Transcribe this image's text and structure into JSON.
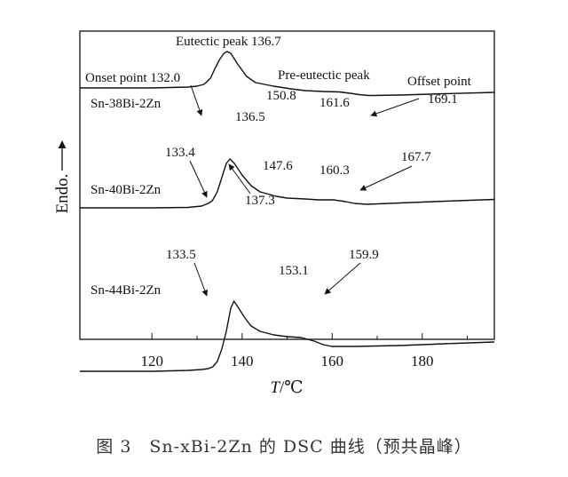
{
  "chart_data": {
    "type": "line",
    "xlabel_var": "T",
    "xlabel_unit": "/℃",
    "ylabel": "Endo.",
    "xlim": [
      104,
      196
    ],
    "xticks": [
      120,
      140,
      160,
      180
    ],
    "grid": false,
    "series": [
      {
        "name": "Sn-38Bi-2Zn",
        "points": [
          [
            104,
            41
          ],
          [
            120,
            41
          ],
          [
            128,
            42
          ],
          [
            130,
            43
          ],
          [
            131.5,
            45
          ],
          [
            132,
            47
          ],
          [
            133,
            52
          ],
          [
            134,
            63
          ],
          [
            135,
            73
          ],
          [
            136,
            80
          ],
          [
            136.7,
            82
          ],
          [
            137.5,
            80
          ],
          [
            139,
            68
          ],
          [
            141,
            54
          ],
          [
            143,
            47
          ],
          [
            147,
            43
          ],
          [
            150.8,
            40
          ],
          [
            154,
            38
          ],
          [
            158,
            37
          ],
          [
            161.6,
            36.5
          ],
          [
            164,
            35
          ],
          [
            166,
            33.5
          ],
          [
            168,
            32.5
          ],
          [
            169.1,
            32.5
          ],
          [
            175,
            33
          ],
          [
            185,
            34.5
          ],
          [
            196,
            36
          ]
        ]
      },
      {
        "name": "Sn-40Bi-2Zn",
        "points": [
          [
            104,
            -2
          ],
          [
            120,
            -2
          ],
          [
            128,
            -1.5
          ],
          [
            131,
            0
          ],
          [
            132.5,
            3
          ],
          [
            133.4,
            6
          ],
          [
            134.5,
            16
          ],
          [
            135.5,
            32
          ],
          [
            136.5,
            48
          ],
          [
            137.3,
            53
          ],
          [
            138.3,
            48
          ],
          [
            140,
            35
          ],
          [
            142,
            23
          ],
          [
            144,
            16
          ],
          [
            147.6,
            11
          ],
          [
            150,
            9
          ],
          [
            154,
            8
          ],
          [
            157,
            7
          ],
          [
            160.3,
            7
          ],
          [
            163,
            5
          ],
          [
            165,
            3
          ],
          [
            167.7,
            2
          ],
          [
            175,
            3.5
          ],
          [
            185,
            5.5
          ],
          [
            196,
            7.5
          ]
        ]
      },
      {
        "name": "Sn-44Bi-2Zn",
        "points": [
          [
            104,
            -73
          ],
          [
            120,
            -73
          ],
          [
            128,
            -72
          ],
          [
            131,
            -71
          ],
          [
            132.5,
            -70
          ],
          [
            133.5,
            -68
          ],
          [
            134.5,
            -62
          ],
          [
            135.5,
            -48
          ],
          [
            136.5,
            -28
          ],
          [
            137.5,
            -2
          ],
          [
            138.2,
            6
          ],
          [
            139,
            0
          ],
          [
            140.5,
            -12
          ],
          [
            142,
            -22
          ],
          [
            144,
            -28
          ],
          [
            147,
            -32
          ],
          [
            150,
            -34
          ],
          [
            153.1,
            -35
          ],
          [
            156,
            -39
          ],
          [
            158,
            -43
          ],
          [
            159.9,
            -45
          ],
          [
            165,
            -45
          ],
          [
            175,
            -44
          ],
          [
            185,
            -42
          ],
          [
            196,
            -40
          ]
        ]
      }
    ],
    "annotations": {
      "eutectic_peak": "Eutectic peak 136.7",
      "onset_point": "Onset point 132.0",
      "pre_eutectic_peak": "Pre-eutectic peak",
      "offset_point": "Offset point",
      "s1_v1": "150.8",
      "s1_v2": "161.6",
      "s1_v3": "169.1",
      "s1_v4": "136.5",
      "s2_v1": "133.4",
      "s2_v2": "147.6",
      "s2_v3": "160.3",
      "s2_v4": "167.7",
      "s2_v5": "137.3",
      "s3_v1": "133.5",
      "s3_v2": "153.1",
      "s3_v3": "159.9"
    }
  },
  "caption": "图 3　Sn-xBi-2Zn 的 DSC 曲线（预共晶峰）"
}
